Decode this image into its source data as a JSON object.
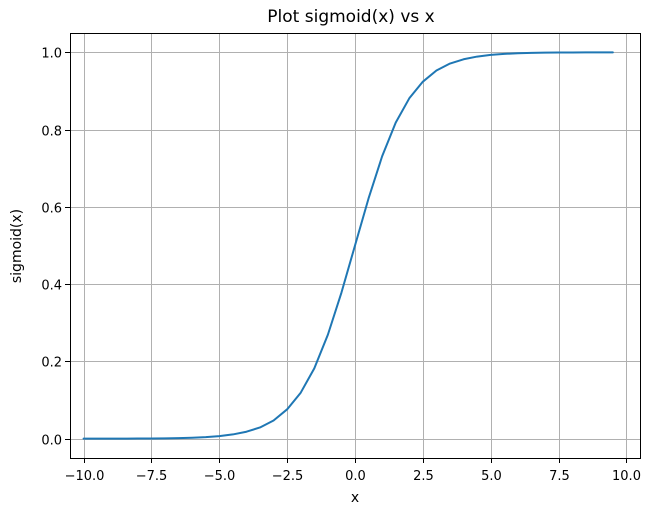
{
  "chart_data": {
    "type": "line",
    "title": "Plot sigmoid(x) vs x",
    "xlabel": "x",
    "ylabel": "sigmoid(x)",
    "xlim": [
      -10.5,
      10.5
    ],
    "ylim": [
      -0.05,
      1.05
    ],
    "grid": true,
    "xticks": [
      -10.0,
      -7.5,
      -5.0,
      -2.5,
      0.0,
      2.5,
      5.0,
      7.5,
      10.0
    ],
    "xtick_labels": [
      "−10.0",
      "−7.5",
      "−5.0",
      "−2.5",
      "0.0",
      "2.5",
      "5.0",
      "7.5",
      "10.0"
    ],
    "yticks": [
      0.0,
      0.2,
      0.4,
      0.6,
      0.8,
      1.0
    ],
    "ytick_labels": [
      "0.0",
      "0.2",
      "0.4",
      "0.6",
      "0.8",
      "1.0"
    ],
    "series": [
      {
        "color": "#1f77b4",
        "x": [
          -10.0,
          -9.5,
          -9.0,
          -8.5,
          -8.0,
          -7.5,
          -7.0,
          -6.5,
          -6.0,
          -5.5,
          -5.0,
          -4.5,
          -4.0,
          -3.5,
          -3.0,
          -2.5,
          -2.0,
          -1.5,
          -1.0,
          -0.5,
          0.0,
          0.5,
          1.0,
          1.5,
          2.0,
          2.5,
          3.0,
          3.5,
          4.0,
          4.5,
          5.0,
          5.5,
          6.0,
          6.5,
          7.0,
          7.5,
          8.0,
          8.5,
          9.0,
          9.5
        ],
        "y": [
          5e-05,
          7e-05,
          0.00012,
          0.0002,
          0.00034,
          0.00055,
          0.00091,
          0.0015,
          0.0025,
          0.0041,
          0.0067,
          0.011,
          0.018,
          0.029,
          0.047,
          0.076,
          0.119,
          0.182,
          0.269,
          0.378,
          0.5,
          0.622,
          0.731,
          0.818,
          0.881,
          0.924,
          0.953,
          0.971,
          0.982,
          0.989,
          0.9933,
          0.9959,
          0.9975,
          0.9985,
          0.9991,
          0.99945,
          0.99966,
          0.9998,
          0.99988,
          0.99993
        ]
      }
    ]
  }
}
